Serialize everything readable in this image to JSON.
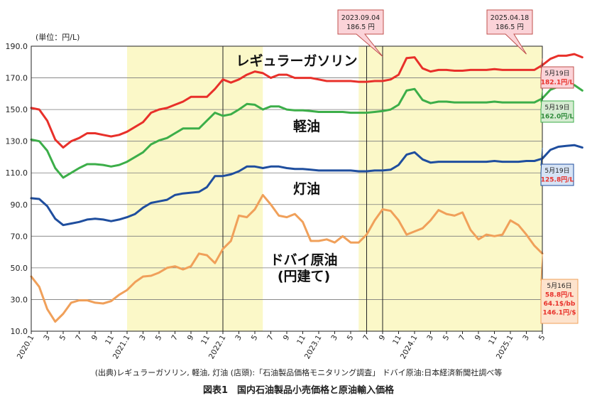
{
  "caption": {
    "source": "(出典)レギュラーガソリン, 軽油, 灯油 (店頭):「石油製品価格モニタリング調査」 ドバイ原油:日本経済新聞社調べ等",
    "figure": "図表1　国内石油製品小売価格と原油輸入価格"
  },
  "chart_data": {
    "type": "line",
    "unit_label": "(単位：円/L)",
    "ylim": [
      10,
      190
    ],
    "yticks": [
      "10.0",
      "30.0",
      "50.0",
      "70.0",
      "90.0",
      "110.0",
      "130.0",
      "150.0",
      "170.0",
      "190.0"
    ],
    "xticks": [
      "2020.1",
      "3",
      "5",
      "7",
      "9",
      "11",
      "2021.1",
      "3",
      "5",
      "7",
      "9",
      "11",
      "2022.1",
      "3",
      "5",
      "7",
      "9",
      "11",
      "2023.1",
      "3",
      "5",
      "7",
      "9",
      "11",
      "2024.1",
      "3",
      "5",
      "7",
      "9",
      "11",
      "2025.1",
      "3",
      "5"
    ],
    "highlight_bands": [
      {
        "from": 12,
        "to": 29,
        "color": "#fbf8c8"
      },
      {
        "from": 41,
        "to": 64,
        "color": "#fbf8c8"
      }
    ],
    "vlines": [
      24,
      42,
      44
    ],
    "series": [
      {
        "name": "レギュラーガソリン",
        "color": "#e8302a",
        "values": [
          151,
          150,
          143,
          131,
          126,
          130,
          132,
          135,
          135,
          134,
          133,
          134,
          136,
          139,
          142,
          148,
          150,
          151,
          153,
          155,
          158,
          158,
          158,
          163,
          169,
          167,
          169,
          172,
          174,
          173,
          170,
          172,
          172,
          170,
          170,
          170,
          169,
          168,
          168,
          168,
          168,
          167.5,
          167.5,
          168,
          168,
          169,
          172,
          182.5,
          183,
          176,
          174,
          175,
          175,
          174.5,
          174.5,
          175,
          175,
          175,
          175.5,
          175,
          175,
          175,
          175,
          175,
          178,
          182,
          184,
          184,
          185,
          183
        ]
      },
      {
        "name": "軽油",
        "color": "#3cae49",
        "values": [
          131,
          130,
          124,
          113,
          107,
          110,
          113,
          115.5,
          115.5,
          115,
          114,
          115,
          117,
          120,
          123,
          128,
          130.5,
          132,
          135,
          138,
          138,
          138,
          143,
          148,
          146,
          147,
          150,
          153.5,
          153,
          150,
          152,
          152,
          150,
          149.5,
          149.5,
          149,
          148.5,
          148.5,
          148.5,
          148.5,
          148,
          148,
          148,
          148.5,
          149,
          150,
          153,
          162,
          163,
          156,
          154,
          155,
          155,
          154.5,
          154.5,
          154.5,
          154.5,
          154.5,
          155,
          154.5,
          154.5,
          154.5,
          154.5,
          154.5,
          157,
          162.5,
          164.5,
          164.5,
          165.5,
          162
        ]
      },
      {
        "name": "灯油",
        "color": "#1f4e9e",
        "values": [
          94,
          93.5,
          89,
          81,
          77,
          78,
          79,
          80.5,
          81,
          80.5,
          79.5,
          80.5,
          82,
          84,
          88,
          91,
          92,
          93,
          96,
          97,
          97.5,
          98,
          101,
          108,
          108,
          109,
          111,
          114,
          114,
          113,
          114,
          114,
          113,
          112.5,
          112.5,
          112,
          111.5,
          111.5,
          111.5,
          111.5,
          111.5,
          111,
          111,
          111.5,
          111.5,
          112,
          115,
          121.5,
          123,
          118.5,
          116.5,
          117,
          117,
          117,
          117,
          117,
          117,
          117,
          117.5,
          117,
          117,
          117,
          117.5,
          117.5,
          119,
          124.5,
          126.5,
          127,
          127.5,
          126
        ]
      },
      {
        "name": "ドバイ原油",
        "color": "#f0a05a",
        "values": [
          44.5,
          38,
          24,
          16,
          21,
          28,
          29.5,
          29.5,
          28,
          27.5,
          29,
          33,
          36,
          41,
          44.5,
          45,
          47,
          50,
          51,
          49,
          51,
          59,
          58,
          53,
          62,
          67,
          83,
          82,
          87,
          96,
          90,
          83,
          82,
          84,
          79,
          67,
          67,
          68,
          66,
          70,
          66,
          66,
          71,
          80,
          87,
          86,
          80,
          71,
          73,
          75,
          80,
          86.5,
          84,
          83,
          85,
          74,
          68,
          71,
          70,
          71,
          80,
          77,
          71,
          64,
          59
        ]
      }
    ],
    "inline_labels": [
      {
        "text": "レギュラーガソリン",
        "class": "series-label"
      },
      {
        "text": "軽油",
        "class": "series-label"
      },
      {
        "text": "灯油",
        "class": "series-label"
      },
      {
        "text": "ドバイ原油",
        "class": "series-label"
      },
      {
        "text": "(円建て)",
        "class": "series-label"
      }
    ],
    "peak_callouts": [
      {
        "date": "2023.09.04",
        "value": "186.5 円",
        "fill": "#fbd3d8",
        "stroke": "#c0504d"
      },
      {
        "date": "2025.04.18",
        "value": "186.5 円",
        "fill": "#fbd3d8",
        "stroke": "#c0504d"
      }
    ],
    "end_callouts": [
      {
        "lines": [
          {
            "t": "5月19日",
            "c": "#222"
          },
          {
            "t": "182.1円/L",
            "c": "#e8302a"
          }
        ],
        "fill": "#fbd3d8",
        "stroke": "#c0504d"
      },
      {
        "lines": [
          {
            "t": "5月19日",
            "c": "#222"
          },
          {
            "t": "162.0円/L",
            "c": "#2e8b3a"
          }
        ],
        "fill": "#d6ecd2",
        "stroke": "#3cae49"
      },
      {
        "lines": [
          {
            "t": "5月19日",
            "c": "#222"
          },
          {
            "t": "125.8円/L",
            "c": "#e8302a"
          }
        ],
        "fill": "#d6e3f5",
        "stroke": "#1f4e9e"
      },
      {
        "lines": [
          {
            "t": "5月16日",
            "c": "#222"
          },
          {
            "t": "58.8円/L",
            "c": "#e8302a"
          },
          {
            "t": "64.1$/bb",
            "c": "#e8302a"
          },
          {
            "t": "146.1円/$",
            "c": "#e8302a"
          }
        ],
        "fill": "#fde3cd",
        "stroke": "#f0a05a"
      }
    ]
  }
}
